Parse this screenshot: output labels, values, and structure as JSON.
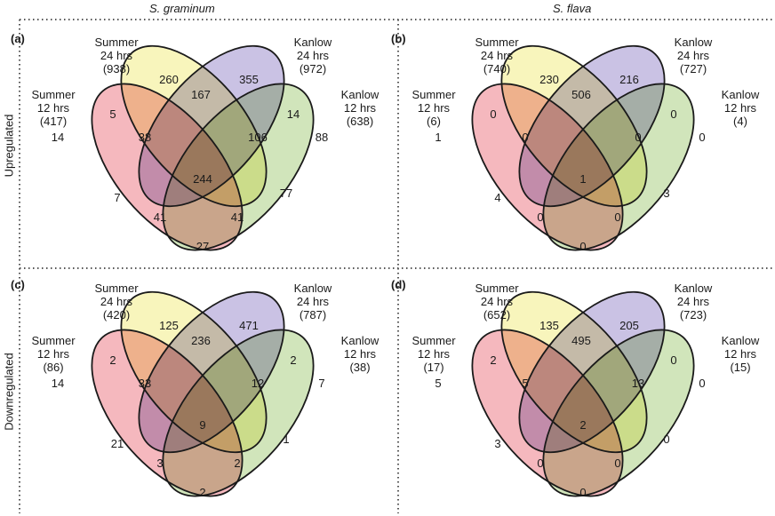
{
  "columns": [
    "S. graminum",
    "S. flava"
  ],
  "rows": [
    "Upregulated",
    "Downregulated"
  ],
  "colors": {
    "summer12": "#f2a0a8",
    "summer24": "#f6f2a6",
    "kanlow24": "#b8aedb",
    "kanlow12": "#c2dca4",
    "outline": "#1a1a1a",
    "border": "#555555"
  },
  "panels": [
    {
      "label": "(a)",
      "sets": {
        "summer12": [
          "Summer",
          "12 hrs",
          "(417)"
        ],
        "summer24": [
          "Summer",
          "24 hrs",
          "(938)"
        ],
        "kanlow24": [
          "Kanlow",
          "24 hrs",
          "(972)"
        ],
        "kanlow12": [
          "Kanlow",
          "12 hrs",
          "(638)"
        ]
      },
      "regions": {
        "s24": "260",
        "k24": "355",
        "s12": "14",
        "k12": "88",
        "s24_k24": "167",
        "s12_s24": "5",
        "k24_k12": "14",
        "s12_s24_k24": "38",
        "s24_k24_k12": "106",
        "all": "244",
        "s12_k24": "7",
        "s24_k12": "77",
        "s12_k24_k12": "41",
        "s12_s24_k12": "41",
        "s12_k12": "27"
      }
    },
    {
      "label": "(b)",
      "sets": {
        "summer12": [
          "Summer",
          "12 hrs",
          "(6)"
        ],
        "summer24": [
          "Summer",
          "24 hrs",
          "(740)"
        ],
        "kanlow24": [
          "Kanlow",
          "24 hrs",
          "(727)"
        ],
        "kanlow12": [
          "Kanlow",
          "12 hrs",
          "(4)"
        ]
      },
      "regions": {
        "s24": "230",
        "k24": "216",
        "s12": "1",
        "k12": "0",
        "s24_k24": "506",
        "s12_s24": "0",
        "k24_k12": "0",
        "s12_s24_k24": "0",
        "s24_k24_k12": "0",
        "all": "1",
        "s12_k24": "4",
        "s24_k12": "3",
        "s12_k24_k12": "0",
        "s12_s24_k12": "0",
        "s12_k12": "0"
      }
    },
    {
      "label": "(c)",
      "sets": {
        "summer12": [
          "Summer",
          "12 hrs",
          "(86)"
        ],
        "summer24": [
          "Summer",
          "24 hrs",
          "(420)"
        ],
        "kanlow24": [
          "Kanlow",
          "24 hrs",
          "(787)"
        ],
        "kanlow12": [
          "Kanlow",
          "12 hrs",
          "(38)"
        ]
      },
      "regions": {
        "s24": "125",
        "k24": "471",
        "s12": "14",
        "k12": "7",
        "s24_k24": "236",
        "s12_s24": "2",
        "k24_k12": "2",
        "s12_s24_k24": "33",
        "s24_k24_k12": "12",
        "all": "9",
        "s12_k24": "21",
        "s24_k12": "1",
        "s12_k24_k12": "3",
        "s12_s24_k12": "2",
        "s12_k12": "2"
      }
    },
    {
      "label": "(d)",
      "sets": {
        "summer12": [
          "Summer",
          "12 hrs",
          "(17)"
        ],
        "summer24": [
          "Summer",
          "24 hrs",
          "(652)"
        ],
        "kanlow24": [
          "Kanlow",
          "24 hrs",
          "(723)"
        ],
        "kanlow12": [
          "Kanlow",
          "12 hrs",
          "(15)"
        ]
      },
      "regions": {
        "s24": "135",
        "k24": "205",
        "s12": "5",
        "k12": "0",
        "s24_k24": "495",
        "s12_s24": "2",
        "k24_k12": "0",
        "s12_s24_k24": "5",
        "s24_k24_k12": "13",
        "all": "2",
        "s12_k24": "3",
        "s24_k12": "0",
        "s12_k24_k12": "0",
        "s12_s24_k12": "0",
        "s12_k12": "0"
      }
    }
  ]
}
